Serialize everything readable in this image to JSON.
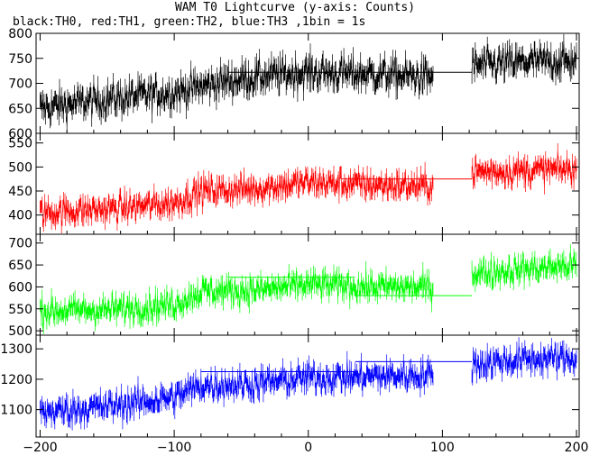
{
  "title": "WAM T0 Lightcurve (y-axis: Counts)",
  "subtitle": "black:TH0, red:TH1, green:TH2, blue:TH3 ,1bin = 1s",
  "chart_data": [
    {
      "type": "line",
      "name": "TH0",
      "color": "#000000",
      "ylim": [
        600,
        800
      ],
      "yticks": [
        600,
        650,
        700,
        750,
        800
      ],
      "xlim": [
        -203,
        202
      ],
      "gap": [
        93,
        122
      ],
      "segments": [
        {
          "x": -200,
          "y": 650
        },
        {
          "x": -150,
          "y": 668
        },
        {
          "x": -100,
          "y": 682
        },
        {
          "x": -60,
          "y": 705
        },
        {
          "x": -40,
          "y": 712
        },
        {
          "x": 0,
          "y": 722
        },
        {
          "x": 50,
          "y": 718
        },
        {
          "x": 93,
          "y": 712
        },
        {
          "x": 122,
          "y": 735
        },
        {
          "x": 160,
          "y": 742
        },
        {
          "x": 200,
          "y": 745
        }
      ],
      "noise": 28,
      "flat": [
        {
          "x0": -60,
          "x1": 122,
          "y": 722
        }
      ]
    },
    {
      "type": "line",
      "name": "TH1",
      "color": "#ff0000",
      "ylim": [
        360,
        570
      ],
      "yticks": [
        400,
        450,
        500,
        550
      ],
      "xlim": [
        -203,
        202
      ],
      "gap": [
        93,
        122
      ],
      "segments": [
        {
          "x": -200,
          "y": 405
        },
        {
          "x": -150,
          "y": 412
        },
        {
          "x": -100,
          "y": 425
        },
        {
          "x": -80,
          "y": 450
        },
        {
          "x": -40,
          "y": 455
        },
        {
          "x": 0,
          "y": 468
        },
        {
          "x": 50,
          "y": 462
        },
        {
          "x": 93,
          "y": 460
        },
        {
          "x": 122,
          "y": 490
        },
        {
          "x": 160,
          "y": 492
        },
        {
          "x": 200,
          "y": 496
        }
      ],
      "noise": 24,
      "flat": [
        {
          "x0": 25,
          "x1": 122,
          "y": 475
        }
      ]
    },
    {
      "type": "line",
      "name": "TH2",
      "color": "#00ff00",
      "ylim": [
        490,
        720
      ],
      "yticks": [
        500,
        550,
        600,
        650,
        700
      ],
      "xlim": [
        -203,
        202
      ],
      "gap": [
        93,
        122
      ],
      "segments": [
        {
          "x": -200,
          "y": 545
        },
        {
          "x": -150,
          "y": 548
        },
        {
          "x": -100,
          "y": 560
        },
        {
          "x": -80,
          "y": 590
        },
        {
          "x": -40,
          "y": 592
        },
        {
          "x": 0,
          "y": 605
        },
        {
          "x": 50,
          "y": 600
        },
        {
          "x": 93,
          "y": 598
        },
        {
          "x": 122,
          "y": 630
        },
        {
          "x": 160,
          "y": 640
        },
        {
          "x": 200,
          "y": 650
        }
      ],
      "noise": 26,
      "flat": [
        {
          "x0": -60,
          "x1": 35,
          "y": 622
        },
        {
          "x0": 35,
          "x1": 122,
          "y": 580
        }
      ]
    },
    {
      "type": "line",
      "name": "TH3",
      "color": "#0000ff",
      "ylim": [
        1010,
        1345
      ],
      "yticks": [
        1100,
        1200,
        1300
      ],
      "xlim": [
        -203,
        202
      ],
      "gap": [
        93,
        122
      ],
      "segments": [
        {
          "x": -200,
          "y": 1090
        },
        {
          "x": -150,
          "y": 1110
        },
        {
          "x": -100,
          "y": 1140
        },
        {
          "x": -80,
          "y": 1180
        },
        {
          "x": -40,
          "y": 1185
        },
        {
          "x": 0,
          "y": 1205
        },
        {
          "x": 50,
          "y": 1210
        },
        {
          "x": 93,
          "y": 1215
        },
        {
          "x": 122,
          "y": 1250
        },
        {
          "x": 160,
          "y": 1265
        },
        {
          "x": 200,
          "y": 1270
        }
      ],
      "noise": 40,
      "flat": [
        {
          "x0": -80,
          "x1": 35,
          "y": 1225
        },
        {
          "x0": 35,
          "x1": 122,
          "y": 1258
        }
      ]
    }
  ],
  "xaxis": {
    "ticks": [
      -200,
      -100,
      0,
      100,
      200
    ],
    "tick_labels": [
      "−200",
      "−100",
      "0",
      "100",
      "200"
    ]
  }
}
